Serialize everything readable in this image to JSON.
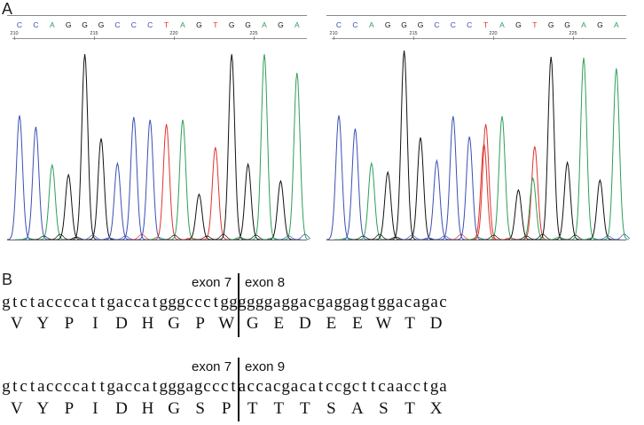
{
  "panel_a": {
    "label": "A",
    "bases": [
      "C",
      "C",
      "A",
      "G",
      "G",
      "G",
      "C",
      "C",
      "C",
      "T",
      "A",
      "G",
      "T",
      "G",
      "G",
      "A",
      "G",
      "A"
    ],
    "colors": {
      "A": "#2e9e5b",
      "C": "#3a4fb4",
      "G": "#111111",
      "T": "#e0332e"
    },
    "tick_labels": [
      "210",
      "215",
      "220",
      "225"
    ],
    "left_trace": {
      "peaks_y": [
        130,
        143,
        186,
        197,
        61,
        156,
        184,
        132,
        135,
        140,
        135,
        219,
        166,
        61,
        185,
        61,
        204,
        82
      ],
      "secondary": []
    },
    "right_trace": {
      "peaks_y": [
        130,
        145,
        184,
        194,
        57,
        155,
        181,
        131,
        154,
        140,
        131,
        214,
        165,
        64,
        183,
        65,
        203,
        77
      ],
      "secondary": [
        {
          "idx": 9,
          "base": "T",
          "y": 162
        },
        {
          "idx": 12,
          "base": "A",
          "y": 201
        }
      ]
    }
  },
  "panel_b": {
    "label": "B",
    "blocks": [
      {
        "exon_left": "exon 7",
        "exon_right": "exon 8",
        "sequence": "gtctaccccattgaccatgggccctggggggaggacgaggagtggacagac",
        "aminoacids": [
          "V",
          "Y",
          "P",
          "I",
          "D",
          "H",
          "G",
          "P",
          "W",
          "G",
          "E",
          "D",
          "E",
          "E",
          "W",
          "T",
          "D"
        ]
      },
      {
        "exon_left": "exon 7",
        "exon_right": "exon 9",
        "sequence": "gtctaccccattgaccatgggagccctaccacgacatccgcttcaacctga",
        "aminoacids": [
          "V",
          "Y",
          "P",
          "I",
          "D",
          "H",
          "G",
          "S",
          "P",
          "T",
          "T",
          "T",
          "S",
          "A",
          "S",
          "T",
          "X"
        ]
      }
    ]
  }
}
